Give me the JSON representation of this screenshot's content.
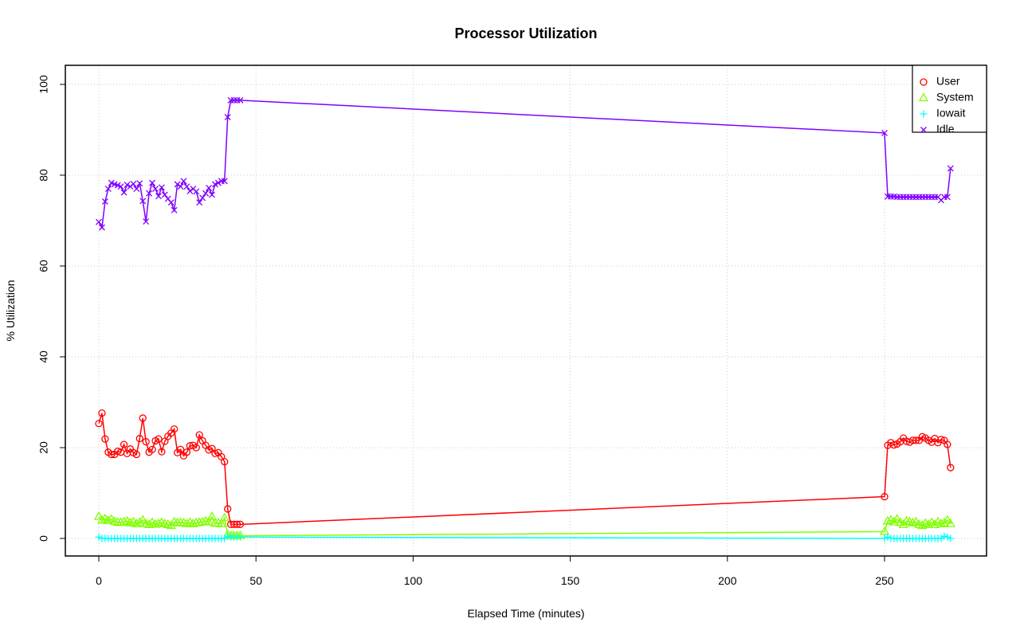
{
  "chart_data": {
    "type": "line",
    "title": "Processor Utilization",
    "x_label": "Elapsed Time (minutes)",
    "y_label": "% Utilization",
    "x": [
      0,
      1,
      2,
      3,
      4,
      5,
      6,
      7,
      8,
      9,
      10,
      11,
      12,
      13,
      14,
      15,
      16,
      17,
      18,
      19,
      20,
      21,
      22,
      23,
      24,
      25,
      26,
      27,
      28,
      29,
      30,
      31,
      32,
      33,
      34,
      35,
      36,
      37,
      38,
      39,
      40,
      41,
      42,
      43,
      44,
      45,
      250,
      251,
      252,
      253,
      254,
      255,
      256,
      257,
      258,
      259,
      260,
      261,
      262,
      263,
      264,
      265,
      266,
      267,
      268,
      269,
      270,
      271
    ],
    "series": [
      {
        "name": "User",
        "color": "#ff0000",
        "marker": "circle",
        "values": [
          25.3,
          27.6,
          21.9,
          19,
          18.5,
          18.5,
          19.2,
          19,
          20.7,
          18.7,
          19.7,
          18.9,
          18.5,
          22,
          26.5,
          21.3,
          19,
          19.6,
          21.5,
          21.9,
          19.1,
          21.4,
          22.5,
          23.2,
          24.1,
          18.9,
          19.6,
          18.2,
          19,
          20.4,
          20.5,
          20,
          22.8,
          21.5,
          20.5,
          19.5,
          19.8,
          18.7,
          18.9,
          18,
          16.9,
          6.5,
          3.1,
          3.1,
          3.1,
          3.1,
          9.2,
          20.5,
          21.1,
          20.6,
          20.8,
          21.3,
          22.1,
          21.4,
          21.2,
          21.6,
          21.6,
          21.6,
          22.4,
          22.1,
          21.6,
          21.2,
          22,
          21.1,
          21.8,
          21.6,
          20.7,
          15.6
        ]
      },
      {
        "name": "System",
        "color": "#80ff00",
        "marker": "triangle",
        "values": [
          4.8,
          4,
          4.3,
          3.9,
          4.2,
          3.7,
          3.5,
          3.5,
          3.6,
          3.8,
          3.4,
          3.6,
          3.2,
          3.5,
          4,
          3.2,
          3,
          3.5,
          3.1,
          3.2,
          3.5,
          3.2,
          3,
          2.8,
          3.6,
          3.4,
          3.5,
          3.4,
          3.2,
          3.5,
          3.2,
          3.4,
          3.5,
          3.6,
          3.8,
          3.6,
          4.8,
          3.3,
          3.4,
          3.2,
          4.5,
          0.8,
          0.6,
          0.6,
          0.6,
          0.6,
          1.5,
          3.8,
          4,
          3.6,
          4.2,
          3.5,
          3,
          3.8,
          3.6,
          3.4,
          3.6,
          3,
          2.8,
          3.3,
          3,
          3.5,
          3,
          3.6,
          3.2,
          3.4,
          4,
          3.2
        ]
      },
      {
        "name": "Iowait",
        "color": "#00ffff",
        "marker": "plus",
        "values": [
          0.3,
          0,
          0,
          0,
          0,
          0,
          0,
          0,
          0,
          0,
          0,
          0,
          0,
          0,
          0,
          0,
          0,
          0,
          0,
          0,
          0,
          0,
          0,
          0,
          0,
          0,
          0,
          0,
          0,
          0,
          0,
          0,
          0,
          0,
          0,
          0,
          0,
          0,
          0,
          0,
          0,
          0.5,
          0.3,
          0.3,
          0.3,
          0.3,
          0,
          0.3,
          0,
          0,
          0,
          0,
          0,
          0,
          0,
          0,
          0,
          0,
          0,
          0,
          0,
          0,
          0,
          0,
          0,
          0.5,
          0.3,
          0
        ]
      },
      {
        "name": "Idle",
        "color": "#8000ff",
        "marker": "cross",
        "values": [
          69.7,
          68.5,
          74.2,
          77,
          78.3,
          78,
          77.8,
          77.5,
          76.2,
          77.9,
          77.5,
          78.1,
          77,
          78.2,
          74.3,
          69.8,
          76,
          78.3,
          77,
          75.4,
          77.3,
          75.7,
          74.8,
          74,
          72.3,
          78,
          77.5,
          78.7,
          77.5,
          76.5,
          77,
          76.4,
          74,
          75,
          76,
          77.2,
          75.7,
          78,
          78.3,
          78.7,
          78.7,
          92.8,
          96.5,
          96.5,
          96.5,
          96.5,
          89.3,
          75.3,
          75.3,
          75.3,
          75.2,
          75.2,
          75.2,
          75.2,
          75.2,
          75.2,
          75.2,
          75.2,
          75.2,
          75.2,
          75.2,
          75.2,
          75.2,
          75.2,
          74.5,
          75.2,
          75.2,
          81.5
        ]
      }
    ],
    "xlim": [
      -10.65,
      282.45
    ],
    "ylim": [
      -3.86,
      104.2
    ],
    "xticks": [
      0,
      50,
      100,
      150,
      200,
      250
    ],
    "yticks": [
      0,
      20,
      40,
      60,
      80,
      100
    ],
    "grid": true,
    "legend": "topright"
  }
}
